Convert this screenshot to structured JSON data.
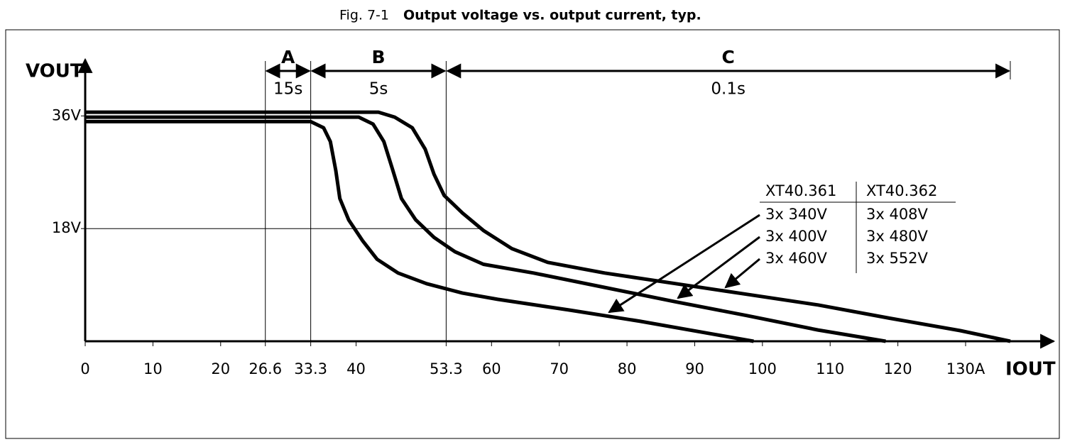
{
  "chart_data": {
    "type": "line",
    "figure_number": "Fig. 7-1",
    "title": "Output voltage vs. output current, typ.",
    "y_label": "VOUT",
    "x_label": "IOUT",
    "xlim": [
      0,
      143
    ],
    "ylim": [
      0,
      45
    ],
    "xticks": [
      0,
      10,
      20,
      26.6,
      33.3,
      40,
      53.3,
      60,
      70,
      80,
      90,
      100,
      110,
      120,
      {
        "value": 130,
        "label": "130A"
      }
    ],
    "yticks": [
      {
        "value": 18,
        "label": "18V"
      },
      {
        "value": 36,
        "label": "36V"
      }
    ],
    "zones": [
      {
        "label": "A",
        "duration": "15s",
        "start": 26.6,
        "end": 33.3
      },
      {
        "label": "B",
        "duration": "5s",
        "start": 33.3,
        "end": 53.3
      },
      {
        "label": "C",
        "duration": "0.1s",
        "start": 53.3,
        "end": 136.6
      }
    ],
    "legend_header": [
      "XT40.361",
      "XT40.362"
    ],
    "series": [
      {
        "names": [
          "3x 340V",
          "3x 408V"
        ],
        "color": "#000000",
        "x": [
          0,
          33.3,
          35.2,
          36.2,
          37.0,
          37.6,
          38.9,
          41.0,
          43.1,
          46.2,
          50.4,
          55.7,
          60.9,
          71.4,
          81.9,
          92.4,
          98.7
        ],
        "values": [
          35.1,
          35.1,
          34.1,
          31.9,
          27.3,
          22.8,
          19.4,
          16.0,
          13.1,
          10.9,
          9.2,
          7.7,
          6.7,
          5.0,
          3.2,
          1.2,
          0
        ]
      },
      {
        "names": [
          "3x 400V",
          "3x 480V"
        ],
        "color": "#000000",
        "x": [
          0,
          40.4,
          42.5,
          44.1,
          45.4,
          46.7,
          48.8,
          51.5,
          54.6,
          58.8,
          66.2,
          76.7,
          87.2,
          97.7,
          108.2,
          118.2
        ],
        "values": [
          35.8,
          35.8,
          34.7,
          31.9,
          27.4,
          22.8,
          19.4,
          16.6,
          14.3,
          12.3,
          10.9,
          8.6,
          6.3,
          4.1,
          1.8,
          0
        ]
      },
      {
        "names": [
          "3x 460V",
          "3x 552V"
        ],
        "color": "#000000",
        "x": [
          0,
          43.3,
          45.7,
          48.3,
          50.2,
          51.5,
          53.0,
          55.7,
          58.8,
          63.0,
          68.3,
          76.7,
          87.2,
          97.7,
          108.2,
          118.7,
          129.2,
          136.6
        ],
        "values": [
          36.6,
          36.6,
          35.8,
          34.1,
          30.7,
          26.7,
          23.3,
          20.5,
          17.7,
          14.8,
          12.6,
          10.9,
          9.2,
          7.5,
          5.8,
          3.7,
          1.7,
          0
        ]
      }
    ]
  }
}
